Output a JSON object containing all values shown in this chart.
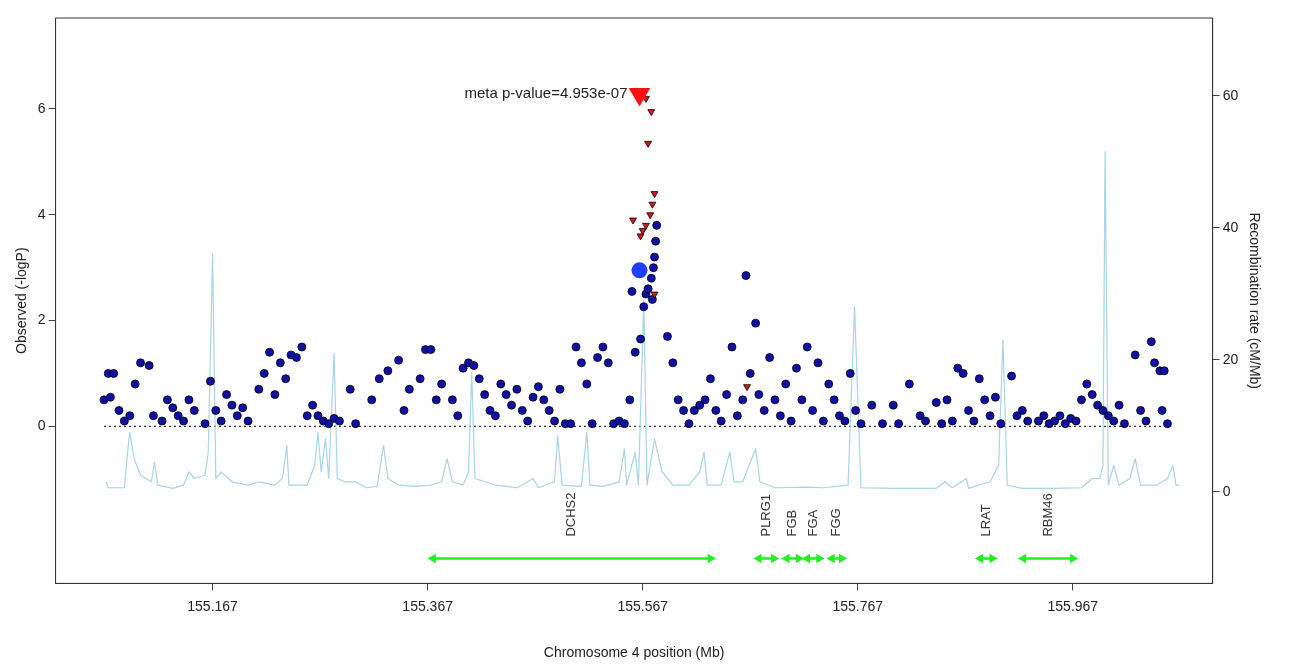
{
  "chart_data": {
    "type": "scatter",
    "xlabel": "Chromosome 4 position (Mb)",
    "ylabel": "Observed (-logP)",
    "y2label": "Recombination rate (cM/Mb)",
    "xlim": [
      155.021,
      156.097
    ],
    "xticks": [
      155.167,
      155.367,
      155.567,
      155.767,
      155.967
    ],
    "ylim": [
      -2.97,
      7.72
    ],
    "yticks": [
      0,
      2,
      4,
      6
    ],
    "y2lim": [
      -13.9,
      71.8
    ],
    "y2ticks": [
      0,
      20,
      40,
      60
    ],
    "grid": false,
    "legend": false,
    "ref_lines": [
      {
        "axis": "y",
        "value": 0,
        "color": "#333333",
        "line_style": "dotted"
      }
    ],
    "annotations": [
      {
        "text": "meta p-value=4.953e-07",
        "x": 155.564,
        "y": 6.28
      }
    ],
    "series": [
      {
        "type": "line",
        "axis": "y2",
        "color": "#a8d4e6",
        "marker": "none",
        "x": [
          155.068,
          155.07,
          155.085,
          155.088,
          155.09,
          155.094,
          155.1,
          155.11,
          155.113,
          155.116,
          155.13,
          155.14,
          155.145,
          155.15,
          155.16,
          155.163,
          155.167,
          155.17,
          155.175,
          155.185,
          155.2,
          155.21,
          155.225,
          155.232,
          155.236,
          155.238,
          155.255,
          155.262,
          155.265,
          155.268,
          155.272,
          155.275,
          155.28,
          155.283,
          155.29,
          155.3,
          155.31,
          155.32,
          155.326,
          155.33,
          155.34,
          155.355,
          155.37,
          155.38,
          155.385,
          155.39,
          155.4,
          155.405,
          155.408,
          155.411,
          155.43,
          155.45,
          155.46,
          155.465,
          155.47,
          155.485,
          155.488,
          155.492,
          155.51,
          155.515,
          155.518,
          155.53,
          155.545,
          155.55,
          155.552,
          155.56,
          155.563,
          155.568,
          155.571,
          155.578,
          155.585,
          155.595,
          155.61,
          155.62,
          155.624,
          155.627,
          155.64,
          155.648,
          155.652,
          155.66,
          155.672,
          155.676,
          155.69,
          155.72,
          155.735,
          155.758,
          155.764,
          155.77,
          155.8,
          155.84,
          155.848,
          155.855,
          155.868,
          155.87,
          155.89,
          155.898,
          155.902,
          155.906,
          155.92,
          155.95,
          155.975,
          155.985,
          155.992,
          155.995,
          155.997,
          156.0,
          156.005,
          156.01,
          156.02,
          156.025,
          156.03,
          156.045,
          156.055,
          156.06,
          156.063,
          156.066
        ],
        "values": [
          1.5,
          0.6,
          0.6,
          6,
          9,
          5,
          2.5,
          1.5,
          4.5,
          1,
          0.5,
          1,
          3,
          2,
          2.5,
          6,
          36,
          2,
          3,
          1.5,
          1,
          1.5,
          1,
          2,
          7,
          1,
          1,
          4,
          9,
          3,
          8,
          2,
          21,
          2,
          1.5,
          1.5,
          0.6,
          0.8,
          7,
          2,
          1,
          0.8,
          1,
          1.5,
          5,
          1.5,
          1,
          3,
          18,
          2,
          1,
          0.6,
          1.5,
          2,
          0.6,
          1.5,
          8.5,
          1,
          0.8,
          9,
          1,
          0.8,
          1.5,
          6.5,
          1,
          6,
          1,
          29,
          1,
          8,
          3,
          1,
          1,
          3,
          6,
          1,
          1,
          6,
          1.5,
          1.5,
          6.5,
          1.5,
          0.6,
          0.7,
          0.6,
          1,
          28,
          0.6,
          0.5,
          0.5,
          1.5,
          0.6,
          2,
          0.5,
          1.5,
          4,
          23,
          1,
          0.5,
          0.5,
          0.6,
          2,
          2,
          4,
          51.5,
          1,
          4,
          1,
          2,
          5,
          1,
          1,
          2,
          4,
          1,
          1
        ]
      },
      {
        "color": "#1010a8",
        "marker": "circle",
        "x": [
          155.066,
          155.07,
          155.075,
          155.072,
          155.08,
          155.085,
          155.09,
          155.095,
          155.1,
          155.108,
          155.112,
          155.12,
          155.125,
          155.13,
          155.135,
          155.14,
          155.145,
          155.15,
          155.16,
          155.165,
          155.17,
          155.175,
          155.18,
          155.185,
          155.19,
          155.195,
          155.2,
          155.21,
          155.215,
          155.22,
          155.225,
          155.23,
          155.235,
          155.24,
          155.245,
          155.25,
          155.255,
          155.26,
          155.265,
          155.27,
          155.275,
          155.28,
          155.285,
          155.295,
          155.3,
          155.315,
          155.322,
          155.33,
          155.34,
          155.345,
          155.35,
          155.36,
          155.365,
          155.37,
          155.375,
          155.38,
          155.39,
          155.395,
          155.4,
          155.405,
          155.41,
          155.415,
          155.42,
          155.425,
          155.43,
          155.435,
          155.44,
          155.445,
          155.45,
          155.455,
          155.46,
          155.465,
          155.47,
          155.475,
          155.48,
          155.485,
          155.49,
          155.495,
          155.5,
          155.505,
          155.51,
          155.515,
          155.52,
          155.525,
          155.53,
          155.535,
          155.54,
          155.545,
          155.55,
          155.555,
          155.557,
          155.56,
          155.565,
          155.568,
          155.57,
          155.572,
          155.575,
          155.576,
          155.577,
          155.578,
          155.579,
          155.58,
          155.59,
          155.595,
          155.6,
          155.605,
          155.61,
          155.615,
          155.62,
          155.625,
          155.63,
          155.635,
          155.64,
          155.645,
          155.65,
          155.655,
          155.66,
          155.663,
          155.667,
          155.672,
          155.675,
          155.68,
          155.685,
          155.69,
          155.695,
          155.7,
          155.705,
          155.71,
          155.715,
          155.72,
          155.725,
          155.73,
          155.735,
          155.74,
          155.745,
          155.75,
          155.755,
          155.76,
          155.765,
          155.77,
          155.78,
          155.79,
          155.8,
          155.805,
          155.815,
          155.825,
          155.83,
          155.84,
          155.845,
          155.85,
          155.855,
          155.86,
          155.865,
          155.87,
          155.875,
          155.88,
          155.885,
          155.89,
          155.895,
          155.9,
          155.91,
          155.915,
          155.92,
          155.925,
          155.935,
          155.94,
          155.945,
          155.95,
          155.955,
          155.96,
          155.965,
          155.97,
          155.975,
          155.98,
          155.985,
          155.99,
          155.995,
          156.0,
          156.005,
          156.01,
          156.015,
          156.025,
          156.03,
          156.035,
          156.04,
          156.043,
          156.048,
          156.05,
          156.052,
          156.055
        ],
        "values": [
          0.5,
          1.0,
          1.0,
          0.55,
          0.3,
          0.1,
          0.2,
          0.8,
          1.2,
          1.15,
          0.2,
          0.1,
          0.5,
          0.35,
          0.2,
          0.1,
          0.5,
          0.3,
          0.05,
          0.85,
          0.3,
          0.1,
          0.6,
          0.4,
          0.2,
          0.35,
          0.1,
          0.7,
          1.0,
          1.4,
          0.6,
          1.2,
          0.9,
          1.35,
          1.3,
          1.5,
          0.2,
          0.4,
          0.2,
          0.1,
          0.05,
          0.15,
          0.1,
          0.7,
          0.05,
          0.5,
          0.9,
          1.05,
          1.25,
          0.3,
          0.7,
          0.9,
          1.45,
          1.45,
          0.5,
          0.8,
          0.5,
          0.2,
          1.1,
          1.2,
          1.15,
          0.9,
          0.6,
          0.3,
          0.2,
          0.8,
          0.6,
          0.4,
          0.7,
          0.3,
          0.1,
          0.55,
          0.75,
          0.5,
          0.3,
          0.1,
          0.7,
          0.05,
          0.05,
          1.5,
          1.2,
          0.8,
          0.05,
          1.3,
          1.5,
          1.2,
          0.05,
          0.1,
          0.05,
          0.5,
          2.55,
          1.4,
          1.65,
          2.26,
          2.5,
          2.6,
          2.8,
          2.4,
          3.0,
          3.2,
          3.5,
          3.8,
          1.7,
          1.2,
          0.5,
          0.3,
          0.05,
          0.3,
          0.4,
          0.5,
          0.9,
          0.3,
          0.1,
          0.6,
          1.5,
          0.2,
          0.5,
          2.85,
          1.0,
          1.95,
          0.6,
          0.3,
          1.3,
          0.5,
          0.2,
          0.8,
          0.1,
          1.1,
          0.5,
          1.5,
          0.3,
          1.2,
          0.1,
          0.8,
          0.5,
          0.2,
          0.1,
          1.0,
          0.3,
          0.05,
          0.4,
          0.05,
          0.4,
          0.05,
          0.8,
          0.2,
          0.1,
          0.45,
          0.05,
          0.5,
          0.1,
          1.1,
          1.0,
          0.3,
          0.1,
          0.9,
          0.5,
          0.2,
          0.55,
          0.05,
          0.95,
          0.2,
          0.3,
          0.1,
          0.1,
          0.2,
          0.05,
          0.1,
          0.2,
          0.05,
          0.15,
          0.1,
          0.5,
          0.8,
          0.6,
          0.4,
          0.3,
          0.2,
          0.1,
          0.4,
          0.05,
          1.35,
          0.3,
          0.1,
          1.6,
          1.2,
          1.05,
          0.3,
          1.05,
          0.05
        ]
      },
      {
        "type": "bubble",
        "color": "#2040ff",
        "marker": "circle",
        "x": [
          155.564
        ],
        "values": [
          2.95
        ],
        "sizes": [
          1
        ]
      },
      {
        "color": "#d81818",
        "marker": "triangle",
        "x": [
          155.57,
          155.575,
          155.572,
          155.578,
          155.576,
          155.574,
          155.57,
          155.567,
          155.558,
          155.565,
          155.578,
          155.664
        ],
        "values": [
          6.2,
          5.95,
          5.35,
          4.4,
          4.2,
          4.0,
          3.8,
          3.7,
          3.9,
          3.6,
          2.5,
          0.75
        ]
      },
      {
        "type": "bubble",
        "color": "#ff1010",
        "marker": "triangle",
        "x": [
          155.564
        ],
        "values": [
          6.28
        ],
        "sizes": [
          1
        ]
      },
      {
        "type": "line",
        "name": "DCHS2",
        "color": "#22ee22",
        "marker": "triangle",
        "x": [
          155.372,
          155.63
        ],
        "values": [
          -2.5,
          -2.5
        ]
      },
      {
        "type": "line",
        "name": "PLRG1",
        "color": "#22ee22",
        "marker": "triangle",
        "x": [
          155.675,
          155.689
        ],
        "values": [
          -2.5,
          -2.5
        ]
      },
      {
        "type": "line",
        "name": "FGB",
        "color": "#22ee22",
        "marker": "triangle",
        "x": [
          155.701,
          155.712
        ],
        "values": [
          -2.5,
          -2.5
        ]
      },
      {
        "type": "line",
        "name": "FGA",
        "color": "#22ee22",
        "marker": "triangle",
        "x": [
          155.72,
          155.731
        ],
        "values": [
          -2.5,
          -2.5
        ]
      },
      {
        "type": "line",
        "name": "FGG",
        "color": "#22ee22",
        "marker": "triangle",
        "x": [
          155.743,
          155.752
        ],
        "values": [
          -2.5,
          -2.5
        ]
      },
      {
        "type": "line",
        "name": "LRAT",
        "color": "#22ee22",
        "marker": "triangle",
        "x": [
          155.881,
          155.892
        ],
        "values": [
          -2.5,
          -2.5
        ]
      },
      {
        "type": "line",
        "name": "RBM46",
        "color": "#22ee22",
        "marker": "triangle",
        "x": [
          155.921,
          155.967
        ],
        "values": [
          -2.5,
          -2.5
        ]
      }
    ]
  }
}
